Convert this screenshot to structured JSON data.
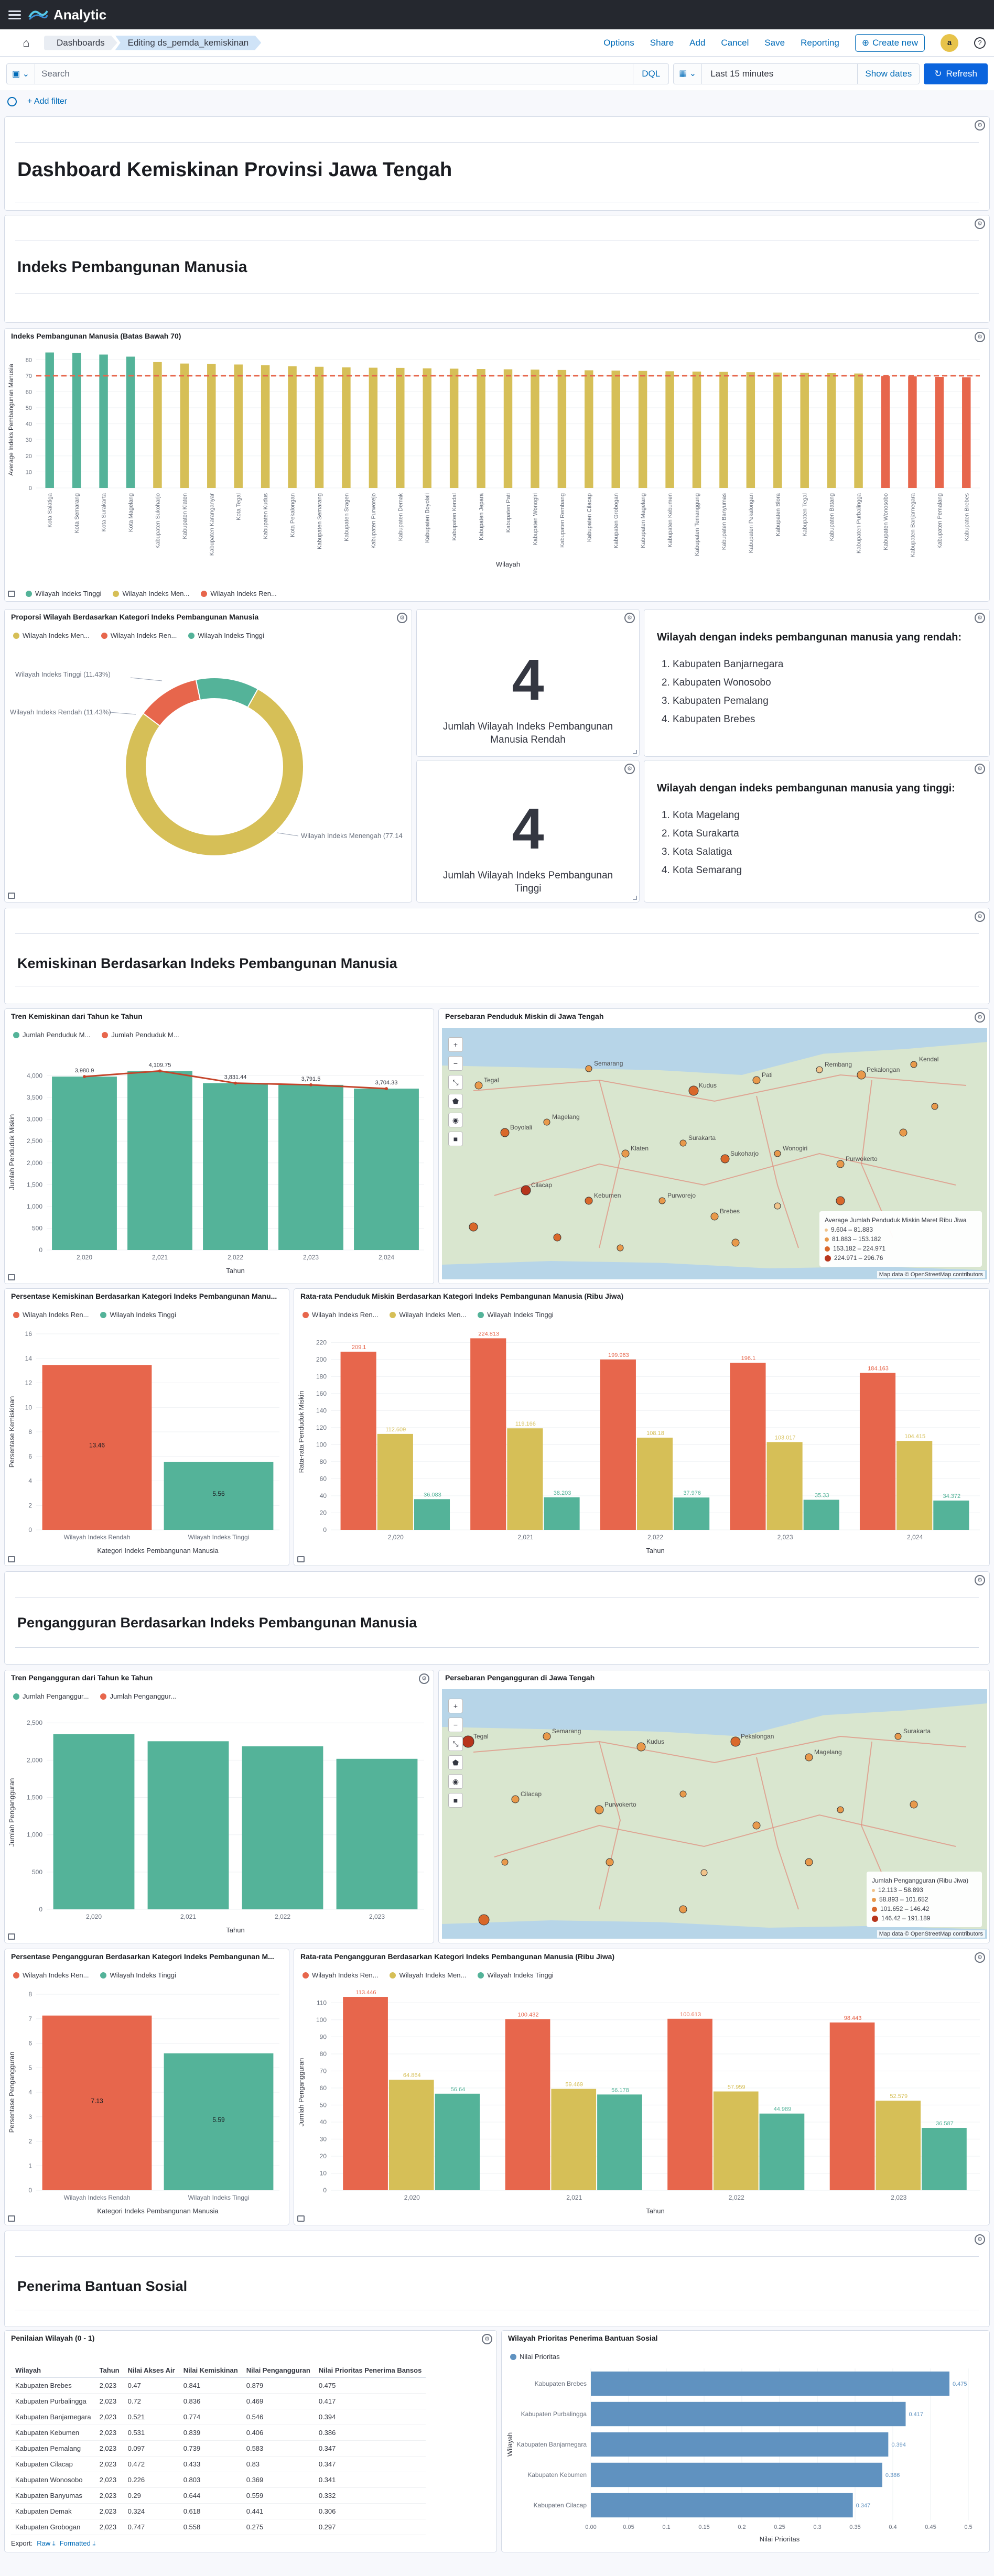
{
  "header": {
    "brand": "Analytic",
    "breadcrumbs": [
      "Dashboards",
      "Editing ds_pemda_kemiskinan"
    ],
    "links": [
      "Options",
      "Share",
      "Add",
      "Cancel",
      "Save",
      "Reporting"
    ],
    "create": "Create new",
    "avatar": "a"
  },
  "query": {
    "placeholder": "Search",
    "dql": "DQL",
    "time": "Last 15 minutes",
    "show_dates": "Show dates",
    "refresh": "Refresh",
    "add_filter": "+ Add filter"
  },
  "titles": {
    "main": "Dashboard Kemiskinan Provinsi Jawa Tengah",
    "ipm": "Indeks Pembangunan Manusia",
    "kemiskinan": "Kemiskinan Berdasarkan Indeks Pembangunan Manusia",
    "pengangguran": "Pengangguran Berdasarkan Indeks Pembangunan Manusia",
    "bansos": "Penerima Bantuan Sosial"
  },
  "colors": {
    "green": "#54b399",
    "yellow": "#d6bf57",
    "red": "#e7664c",
    "blue": "#6092c0",
    "accent": "#006bb8"
  },
  "legend_ipm": [
    "Wilayah Indeks Tinggi",
    "Wilayah Indeks Men...",
    "Wilayah Indeks Ren..."
  ],
  "ipm_chart": {
    "title": "Indeks Pembangunan Manusia (Batas Bawah 70)",
    "ylabel": "Average Indeks Pembangunan Manusia",
    "xlabel": "Wilayah",
    "chart_data": {
      "type": "bar",
      "ylim": [
        0,
        85
      ],
      "threshold": 70,
      "categories": [
        "Kota Salatiga",
        "Kota Semarang",
        "Kota Surakarta",
        "Kota Magelang",
        "Kabupaten Sukoharjo",
        "Kabupaten Klaten",
        "Kabupaten Karanganyar",
        "Kota Tegal",
        "Kabupaten Kudus",
        "Kota Pekalongan",
        "Kabupaten Semarang",
        "Kabupaten Sragen",
        "Kabupaten Purworejo",
        "Kabupaten Demak",
        "Kabupaten Boyolali",
        "Kabupaten Kendal",
        "Kabupaten Jepara",
        "Kabupaten Pati",
        "Kabupaten Wonogiri",
        "Kabupaten Rembang",
        "Kabupaten Cilacap",
        "Kabupaten Grobogan",
        "Kabupaten Magelang",
        "Kabupaten Kebumen",
        "Kabupaten Temanggung",
        "Kabupaten Banyumas",
        "Kabupaten Pekalongan",
        "Kabupaten Blora",
        "Kabupaten Tegal",
        "Kabupaten Batang",
        "Kabupaten Purbalingga",
        "Kabupaten Wonosobo",
        "Kabupaten Banjarnegara",
        "Kabupaten Pemalang",
        "Kabupaten Brebes"
      ],
      "values": [
        84.5,
        84.2,
        83.2,
        81.9,
        78.5,
        77.6,
        77.4,
        77.0,
        76.5,
        75.9,
        75.6,
        75.2,
        75.0,
        74.9,
        74.6,
        74.4,
        74.2,
        74.0,
        73.8,
        73.6,
        73.4,
        73.2,
        73.0,
        72.8,
        72.6,
        72.4,
        72.2,
        72.0,
        71.8,
        71.6,
        71.4,
        69.8,
        69.6,
        69.3,
        69.0
      ],
      "group": [
        "t",
        "t",
        "t",
        "t",
        "m",
        "m",
        "m",
        "m",
        "m",
        "m",
        "m",
        "m",
        "m",
        "m",
        "m",
        "m",
        "m",
        "m",
        "m",
        "m",
        "m",
        "m",
        "m",
        "m",
        "m",
        "m",
        "m",
        "m",
        "m",
        "m",
        "m",
        "r",
        "r",
        "r",
        "r"
      ]
    }
  },
  "proporsi": {
    "title": "Proporsi Wilayah Berdasarkan Kategori Indeks Pembangunan Manusia",
    "legend": [
      "Wilayah Indeks Men...",
      "Wilayah Indeks Ren...",
      "Wilayah Indeks Tinggi"
    ],
    "chart_data": {
      "type": "pie",
      "labels": [
        "Wilayah Indeks Menengah (77.14%)",
        "Wilayah Indeks Rendah (11.43%)",
        "Wilayah Indeks Tinggi (11.43%)"
      ],
      "values": [
        77.14,
        11.43,
        11.43
      ]
    },
    "label_tinggi": "Wilayah Indeks Tinggi (11.43%)",
    "label_rendah": "Wilayah Indeks Rendah (11.43%)",
    "label_menengah": "Wilayah Indeks Menengah (77.14"
  },
  "metric_rendah": {
    "value": "4",
    "label": "Jumlah Wilayah Indeks Pembangunan Manusia Rendah"
  },
  "metric_tinggi": {
    "value": "4",
    "label": "Jumlah Wilayah Indeks Pembangunan Tinggi"
  },
  "list_rendah": {
    "heading": "Wilayah dengan indeks pembangunan manusia yang rendah:",
    "items": [
      "Kabupaten Banjarnegara",
      "Kabupaten Wonosobo",
      "Kabupaten Pemalang",
      "Kabupaten Brebes"
    ]
  },
  "list_tinggi": {
    "heading": "Wilayah dengan indeks pembangunan manusia yang tinggi:",
    "items": [
      "Kota Magelang",
      "Kota Surakarta",
      "Kota Salatiga",
      "Kota Semarang"
    ]
  },
  "tren_miskin": {
    "title": "Tren Kemiskinan dari Tahun ke Tahun",
    "legend": [
      "Jumlah Penduduk M...",
      "Jumlah Penduduk M..."
    ],
    "ylabel": "Jumlah Penduduk Miskin",
    "xlabel": "Tahun",
    "chart_data": {
      "type": "bar",
      "categories": [
        "2,020",
        "2,021",
        "2,022",
        "2,023",
        "2,024"
      ],
      "values": [
        3980.9,
        4109.75,
        3831.44,
        3791.5,
        3704.33
      ],
      "line": [
        3980.9,
        4109.75,
        3831.44,
        3791.5,
        3704.33
      ],
      "labels": [
        "3,980.9",
        "4,109.75",
        "3,831.44",
        "3,791.5",
        "3,704.33"
      ],
      "ylim": [
        0,
        4500
      ],
      "yticks": [
        0,
        500,
        1000,
        1500,
        2000,
        2500,
        3000,
        3500,
        4000
      ]
    }
  },
  "map_miskin": {
    "title": "Persebaran Penduduk Miskin di Jawa Tengah",
    "legend_title": "Average Jumlah Penduduk Miskin Maret Ribu Jiwa",
    "legend": [
      "9.604 – 81.883",
      "81.883 – 153.182",
      "153.182 – 224.971",
      "224.971 – 296.76"
    ],
    "attribution": "Map data © OpenStreetMap contributors",
    "cities": [
      "Tegal",
      "Semarang",
      "Kudus",
      "Pati",
      "Rembang",
      "Pekalongan",
      "Kendal",
      "Boyolali",
      "Magelang",
      "Klaten",
      "Surakarta",
      "Sukoharjo",
      "Wonogiri",
      "Purwokerto",
      "Cilacap",
      "Kebumen",
      "Purworejo",
      "Brebes"
    ]
  },
  "persen_miskin": {
    "title": "Persentase Kemiskinan Berdasarkan Kategori Indeks Pembangunan Manu...",
    "legend": [
      "Wilayah Indeks Ren...",
      "Wilayah Indeks Tinggi"
    ],
    "ylabel": "Persentase Kemiskinan",
    "xlabel": "Kategori Indeks Pembangunan Manusia",
    "chart_data": {
      "type": "bar",
      "categories": [
        "Wilayah Indeks Rendah",
        "Wilayah Indeks Tinggi"
      ],
      "values": [
        13.46,
        5.56
      ],
      "labels": [
        "13.46",
        "5.56"
      ],
      "ylim": [
        0,
        16
      ],
      "yticks": [
        0,
        2,
        4,
        6,
        8,
        10,
        12,
        14,
        16
      ]
    }
  },
  "rata_miskin": {
    "title": "Rata-rata Penduduk Miskin Berdasarkan Kategori Indeks Pembangunan Manusia (Ribu Jiwa)",
    "legend": [
      "Wilayah Indeks Ren...",
      "Wilayah Indeks Men...",
      "Wilayah Indeks Tinggi"
    ],
    "ylabel": "Rata-rata Penduduk Miskin",
    "xlabel": "Tahun",
    "chart_data": {
      "type": "bar",
      "categories": [
        "2,020",
        "2,021",
        "2,022",
        "2,023",
        "2,024"
      ],
      "ylim": [
        0,
        230
      ],
      "yticks": [
        0,
        20,
        40,
        60,
        80,
        100,
        120,
        140,
        160,
        180,
        200,
        220
      ],
      "series": [
        {
          "name": "Wilayah Indeks Ren...",
          "values": [
            209.1,
            224.813,
            199.963,
            196.1,
            184.163
          ],
          "labels": [
            "209.1",
            "224.813",
            "199.963",
            "196.1",
            "184.163"
          ]
        },
        {
          "name": "Wilayah Indeks Men...",
          "values": [
            112.609,
            119.166,
            108.18,
            103.017,
            104.415
          ],
          "labels": [
            "112.609",
            "119.166",
            "108.18",
            "103.017",
            "104.415"
          ]
        },
        {
          "name": "Wilayah Indeks Tinggi",
          "values": [
            36.083,
            38.203,
            37.976,
            35.33,
            34.372
          ],
          "labels": [
            "36.083",
            "38.203",
            "37.976",
            "35.33",
            "34.372"
          ]
        }
      ]
    }
  },
  "tren_nganggur": {
    "title": "Tren Pengangguran dari Tahun ke Tahun",
    "legend": [
      "Jumlah Penganggur...",
      "Jumlah Penganggur..."
    ],
    "ylabel": "Jumlah Pengangguran",
    "xlabel": "Tahun",
    "chart_data": {
      "type": "bar",
      "categories": [
        "2,020",
        "2,021",
        "2,022",
        "2,023"
      ],
      "values": [
        2349.446,
        2253.54,
        2185.32,
        2018.224
      ],
      "labels": [
        "2,349.446",
        "2,253.54",
        "2,185.32",
        "2,018.224"
      ],
      "ylim": [
        0,
        2600
      ],
      "yticks": [
        0,
        500,
        1000,
        1500,
        2000,
        2500
      ]
    }
  },
  "map_nganggur": {
    "title": "Persebaran Pengangguran di Jawa Tengah",
    "legend_title": "Jumlah Pengangguran (Ribu Jiwa)",
    "legend": [
      "12.113 – 58.893",
      "58.893 – 101.652",
      "101.652 – 146.42",
      "146.42 – 191.189"
    ],
    "attribution": "Map data © OpenStreetMap contributors",
    "cities": [
      "Tegal",
      "Semarang",
      "Kudus",
      "Pekalongan",
      "Magelang",
      "Surakarta",
      "Cilacap",
      "Purwokerto"
    ]
  },
  "persen_nganggur": {
    "title": "Persentase Pengangguran Berdasarkan Kategori Indeks Pembangunan M...",
    "legend": [
      "Wilayah Indeks Ren...",
      "Wilayah Indeks Tinggi"
    ],
    "ylabel": "Persentase Pengangguran",
    "xlabel": "Kategori Indeks Pembangunan Manusia",
    "chart_data": {
      "type": "bar",
      "categories": [
        "Wilayah Indeks Rendah",
        "Wilayah Indeks Tinggi"
      ],
      "values": [
        7.13,
        5.59
      ],
      "labels": [
        "7.13",
        "5.59"
      ],
      "ylim": [
        0,
        8
      ],
      "yticks": [
        0,
        1,
        2,
        3,
        4,
        5,
        6,
        7,
        8
      ]
    }
  },
  "rata_nganggur": {
    "title": "Rata-rata Pengangguran Berdasarkan Kategori Indeks Pembangunan Manusia (Ribu Jiwa)",
    "legend": [
      "Wilayah Indeks Ren...",
      "Wilayah Indeks Men...",
      "Wilayah Indeks Tinggi"
    ],
    "ylabel": "Jumlah Pengangguran",
    "xlabel": "Tahun",
    "chart_data": {
      "type": "bar",
      "categories": [
        "2,020",
        "2,021",
        "2,022",
        "2,023"
      ],
      "ylim": [
        0,
        115
      ],
      "yticks": [
        0,
        10,
        20,
        30,
        40,
        50,
        60,
        70,
        80,
        90,
        100,
        110
      ],
      "series": [
        {
          "name": "Wilayah Indeks Ren...",
          "values": [
            113.446,
            100.432,
            100.613,
            98.443
          ],
          "labels": [
            "113.446",
            "100.432",
            "100.613",
            "98.443"
          ]
        },
        {
          "name": "Wilayah Indeks Men...",
          "values": [
            64.864,
            59.469,
            57.959,
            52.579
          ],
          "labels": [
            "64.864",
            "59.469",
            "57.959",
            "52.579"
          ]
        },
        {
          "name": "Wilayah Indeks Tinggi",
          "values": [
            56.64,
            56.178,
            44.989,
            36.587
          ],
          "labels": [
            "56.64",
            "56.178",
            "44.989",
            "36.587"
          ]
        }
      ]
    }
  },
  "penilaian": {
    "title": "Penilaian Wilayah (0 - 1)",
    "columns": [
      "Wilayah",
      "Tahun",
      "Nilai Akses Air",
      "Nilai Kemiskinan",
      "Nilai Pengangguran",
      "Nilai Prioritas Penerima Bansos"
    ],
    "rows": [
      [
        "Kabupaten Brebes",
        "2,023",
        "0.47",
        "0.841",
        "0.879",
        "0.475"
      ],
      [
        "Kabupaten Purbalingga",
        "2,023",
        "0.72",
        "0.836",
        "0.469",
        "0.417"
      ],
      [
        "Kabupaten Banjarnegara",
        "2,023",
        "0.521",
        "0.774",
        "0.546",
        "0.394"
      ],
      [
        "Kabupaten Kebumen",
        "2,023",
        "0.531",
        "0.839",
        "0.406",
        "0.386"
      ],
      [
        "Kabupaten Pemalang",
        "2,023",
        "0.097",
        "0.739",
        "0.583",
        "0.347"
      ],
      [
        "Kabupaten Cilacap",
        "2,023",
        "0.472",
        "0.433",
        "0.83",
        "0.347"
      ],
      [
        "Kabupaten Wonosobo",
        "2,023",
        "0.226",
        "0.803",
        "0.369",
        "0.341"
      ],
      [
        "Kabupaten Banyumas",
        "2,023",
        "0.29",
        "0.644",
        "0.559",
        "0.332"
      ],
      [
        "Kabupaten Demak",
        "2,023",
        "0.324",
        "0.618",
        "0.441",
        "0.306"
      ],
      [
        "Kabupaten Grobogan",
        "2,023",
        "0.747",
        "0.558",
        "0.275",
        "0.297"
      ]
    ],
    "export": "Export:",
    "raw": "Raw",
    "formatted": "Formatted"
  },
  "prioritas": {
    "title": "Wilayah Prioritas Penerima Bantuan Sosial",
    "legend": "Nilai Prioritas",
    "ylabel": "Wilayah",
    "xlabel": "Nilai Prioritas",
    "chart_data": {
      "type": "bar",
      "orientation": "horizontal",
      "categories": [
        "Kabupaten Brebes",
        "Kabupaten Purbalingga",
        "Kabupaten Banjarnegara",
        "Kabupaten Kebumen",
        "Kabupaten Cilacap"
      ],
      "values": [
        0.475,
        0.417,
        0.394,
        0.386,
        0.347
      ],
      "labels": [
        "0.475",
        "0.417",
        "0.394",
        "0.386",
        "0.347"
      ],
      "xlim": [
        0,
        0.5
      ],
      "xticks": [
        "0.00",
        "0.05",
        "0.1",
        "0.15",
        "0.2",
        "0.25",
        "0.3",
        "0.35",
        "0.4",
        "0.45",
        "0.5"
      ]
    }
  }
}
